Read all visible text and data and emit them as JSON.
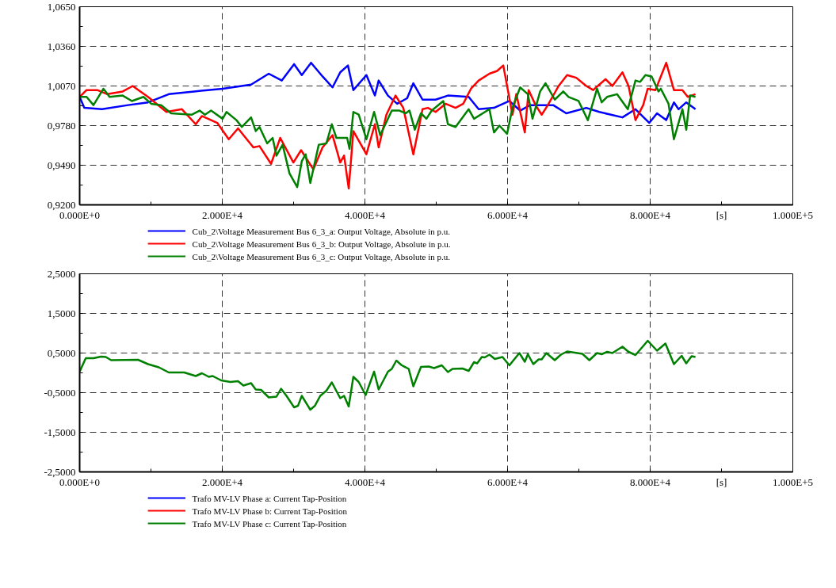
{
  "chart_data": [
    {
      "type": "line",
      "xlabel": "[s]",
      "xlim": [
        0,
        100000
      ],
      "ylim": [
        0.92,
        1.065
      ],
      "grid": true,
      "legend": "bottom",
      "line_style": "solid",
      "xticks": [
        {
          "value": 0,
          "label": "0.000E+0"
        },
        {
          "value": 20000,
          "label": "2.000E+4"
        },
        {
          "value": 40000,
          "label": "4.000E+4"
        },
        {
          "value": 60000,
          "label": "6.000E+4"
        },
        {
          "value": 80000,
          "label": "8.000E+4"
        },
        {
          "value": 100000,
          "label": "1.000E+5"
        }
      ],
      "yticks": [
        {
          "value": 0.92,
          "label": "0,9200"
        },
        {
          "value": 0.949,
          "label": "0,9490"
        },
        {
          "value": 0.978,
          "label": "0,9780"
        },
        {
          "value": 1.007,
          "label": "1,0070"
        },
        {
          "value": 1.036,
          "label": "1,0360"
        },
        {
          "value": 1.065,
          "label": "1,0650"
        }
      ],
      "series": [
        {
          "name": "Cub_2\\Voltage Measurement Bus 6_3_a: Output Voltage, Absolute in p.u.",
          "color": "#0000ff",
          "x": [
            0,
            650,
            3130,
            6790,
            9590,
            12500,
            16060,
            20050,
            24040,
            26520,
            28350,
            30070,
            31150,
            32450,
            34060,
            35460,
            36540,
            37620,
            38380,
            40210,
            41400,
            41930,
            43230,
            44520,
            45920,
            46790,
            48080,
            49910,
            51640,
            54550,
            55950,
            58100,
            60260,
            61770,
            63170,
            66400,
            68240,
            71040,
            72870,
            76110,
            77940,
            79880,
            80960,
            82250,
            83330,
            83980,
            85060,
            86350
          ],
          "values": [
            0.999,
            0.991,
            0.99,
            0.993,
            0.995,
            1.001,
            1.003,
            1.005,
            1.008,
            1.016,
            1.011,
            1.023,
            1.015,
            1.024,
            1.014,
            1.006,
            1.017,
            1.022,
            1.004,
            1.015,
            1.0,
            1.011,
            1.0,
            0.994,
            0.998,
            1.009,
            0.997,
            0.997,
            1.0,
            0.999,
            0.99,
            0.991,
            0.996,
            0.989,
            0.993,
            0.993,
            0.987,
            0.991,
            0.988,
            0.984,
            0.99,
            0.98,
            0.987,
            0.982,
            0.995,
            0.99,
            0.995,
            0.99
          ]
        },
        {
          "name": "Cub_2\\Voltage Measurement Bus 6_3_b: Output Voltage, Absolute in p.u.",
          "color": "#ff0000",
          "x": [
            0,
            970,
            2480,
            3880,
            6040,
            7440,
            8520,
            9590,
            12180,
            14340,
            16280,
            17140,
            19300,
            20910,
            22210,
            24360,
            25220,
            26840,
            28130,
            29970,
            31050,
            32770,
            34060,
            35460,
            36540,
            37080,
            37730,
            38380,
            40210,
            41400,
            41930,
            43010,
            44300,
            45380,
            46790,
            48080,
            48830,
            49910,
            51310,
            52710,
            53790,
            54870,
            55950,
            57460,
            58540,
            59400,
            60690,
            61230,
            62420,
            62960,
            63930,
            64790,
            65650,
            67160,
            68350,
            69640,
            71040,
            72010,
            72870,
            73740,
            74700,
            76110,
            76970,
            77940,
            79020,
            79660,
            80740,
            82250,
            83330,
            84520,
            85270,
            86350
          ],
          "values": [
            0.999,
            1.004,
            1.004,
            1.001,
            1.003,
            1.007,
            1.003,
            0.999,
            0.988,
            0.99,
            0.979,
            0.985,
            0.98,
            0.968,
            0.976,
            0.962,
            0.963,
            0.95,
            0.969,
            0.951,
            0.96,
            0.946,
            0.962,
            0.971,
            0.951,
            0.956,
            0.932,
            0.974,
            0.957,
            0.979,
            0.962,
            0.986,
            1.0,
            0.991,
            0.957,
            0.99,
            0.991,
            0.988,
            0.994,
            0.991,
            0.994,
            1.005,
            1.011,
            1.016,
            1.018,
            1.022,
            0.986,
            1.001,
            0.973,
            1.004,
            0.993,
            0.986,
            0.993,
            1.007,
            1.015,
            1.013,
            1.007,
            1.004,
            1.008,
            1.012,
            1.007,
            1.017,
            1.007,
            0.982,
            0.993,
            1.005,
            1.004,
            1.024,
            1.004,
            1.004,
            0.999,
            1.001
          ]
        },
        {
          "name": "Cub_2\\Voltage Measurement Bus 6_3_c: Output Voltage, Absolute in p.u.",
          "color": "#008000",
          "x": [
            0,
            970,
            1940,
            3340,
            4200,
            6040,
            7330,
            8950,
            10030,
            11430,
            12830,
            15740,
            16820,
            17570,
            18430,
            20050,
            20590,
            21990,
            22750,
            24040,
            24690,
            25220,
            26300,
            27060,
            27600,
            28460,
            29430,
            30510,
            31150,
            31690,
            32340,
            33530,
            34600,
            35360,
            36000,
            37510,
            37840,
            38380,
            39130,
            40210,
            41290,
            42150,
            43770,
            44840,
            45710,
            46250,
            47000,
            47860,
            48620,
            49370,
            50990,
            51640,
            52710,
            54550,
            55300,
            57460,
            58100,
            58860,
            59940,
            60690,
            61770,
            62850,
            63500,
            64570,
            65330,
            66620,
            67810,
            68560,
            69960,
            71260,
            72550,
            73200,
            73950,
            75350,
            76860,
            77940,
            78590,
            79340,
            80200,
            81170,
            81490,
            82570,
            83330,
            84520,
            85060,
            85600,
            86350
          ],
          "values": [
            0.999,
            0.999,
            0.993,
            1.005,
            0.999,
            1.0,
            0.996,
            0.999,
            0.994,
            0.993,
            0.987,
            0.986,
            0.989,
            0.986,
            0.989,
            0.983,
            0.988,
            0.982,
            0.977,
            0.984,
            0.974,
            0.977,
            0.965,
            0.969,
            0.956,
            0.964,
            0.943,
            0.933,
            0.952,
            0.957,
            0.936,
            0.964,
            0.965,
            0.979,
            0.969,
            0.969,
            0.961,
            0.988,
            0.986,
            0.968,
            0.988,
            0.971,
            0.989,
            0.989,
            0.987,
            0.989,
            0.975,
            0.987,
            0.983,
            0.989,
            0.996,
            0.979,
            0.977,
            0.99,
            0.983,
            0.99,
            0.973,
            0.978,
            0.972,
            0.991,
            1.006,
            1.001,
            0.983,
            1.003,
            1.009,
            0.997,
            1.003,
            0.999,
            0.996,
            0.982,
            1.005,
            0.995,
            0.999,
            1.001,
            0.99,
            1.011,
            1.01,
            1.015,
            1.014,
            1.003,
            1.005,
            0.994,
            0.968,
            0.99,
            0.975,
            1.0,
            0.999
          ]
        }
      ]
    },
    {
      "type": "line",
      "xlabel": "[s]",
      "xlim": [
        0,
        100000
      ],
      "ylim": [
        -2.5,
        2.5
      ],
      "grid": true,
      "legend": "bottom",
      "line_style": "solid",
      "xticks": [
        {
          "value": 0,
          "label": "0.000E+0"
        },
        {
          "value": 20000,
          "label": "2.000E+4"
        },
        {
          "value": 40000,
          "label": "4.000E+4"
        },
        {
          "value": 60000,
          "label": "6.000E+4"
        },
        {
          "value": 80000,
          "label": "8.000E+4"
        },
        {
          "value": 100000,
          "label": "1.000E+5"
        }
      ],
      "yticks": [
        {
          "value": -2.5,
          "label": "-2,5000"
        },
        {
          "value": -1.5,
          "label": "-1,5000"
        },
        {
          "value": -0.5,
          "label": "-0,5000"
        },
        {
          "value": 0.5,
          "label": "0,5000"
        },
        {
          "value": 1.5,
          "label": "1,5000"
        },
        {
          "value": 2.5,
          "label": "2,5000"
        }
      ],
      "x": [
        0,
        860,
        1940,
        3020,
        3670,
        4420,
        8190,
        9590,
        11100,
        12500,
        14660,
        16280,
        17140,
        18110,
        18650,
        19840,
        21130,
        22210,
        22960,
        24040,
        24690,
        25440,
        26520,
        27600,
        28240,
        29000,
        30070,
        30620,
        31150,
        32340,
        32990,
        33740,
        34600,
        35360,
        36540,
        37080,
        37730,
        38380,
        39130,
        40100,
        41290,
        41930,
        43230,
        43770,
        44410,
        45170,
        46140,
        46790,
        47860,
        48940,
        49700,
        50780,
        51640,
        52280,
        53680,
        54550,
        55300,
        55740,
        56390,
        56800,
        57460,
        58210,
        59290,
        60260,
        61660,
        62420,
        62850,
        63610,
        64360,
        64790,
        65440,
        66620,
        67480,
        68350,
        70500,
        71470,
        72550,
        73200,
        73950,
        74700,
        76110,
        76970,
        77940,
        79660,
        80960,
        82140,
        83330,
        84410,
        85060,
        85810,
        86350
      ],
      "series": [
        {
          "name": "Trafo MV-LV Phase a: Current Tap-Position",
          "color": "#0000ff",
          "values": [
            null,
            null,
            null,
            null,
            null,
            null,
            null,
            null,
            null,
            null,
            null,
            null,
            null,
            null,
            null,
            null,
            null,
            null,
            null,
            null,
            null,
            null,
            null,
            null,
            null,
            null,
            null,
            null,
            null,
            null,
            null,
            null,
            null,
            null,
            null,
            null,
            null,
            null,
            null,
            null,
            null,
            null,
            null,
            null,
            null,
            null,
            null,
            null,
            null,
            null,
            null,
            null,
            null,
            null,
            null,
            null,
            null,
            null,
            null,
            null,
            null,
            null,
            null,
            null,
            null,
            null,
            null,
            null,
            null,
            null,
            null,
            null,
            null,
            null,
            null,
            null,
            null,
            null,
            null,
            null,
            null,
            null,
            null,
            null,
            null,
            null,
            null,
            null,
            null,
            null,
            null
          ]
        },
        {
          "name": "Trafo MV-LV Phase b: Current Tap-Position",
          "color": "#ff0000",
          "values": [
            null,
            null,
            null,
            null,
            null,
            null,
            null,
            null,
            null,
            null,
            null,
            null,
            null,
            null,
            null,
            null,
            null,
            null,
            null,
            null,
            null,
            null,
            null,
            null,
            null,
            null,
            null,
            null,
            null,
            null,
            null,
            null,
            null,
            null,
            null,
            null,
            null,
            null,
            null,
            null,
            null,
            null,
            null,
            null,
            null,
            null,
            null,
            null,
            null,
            null,
            null,
            null,
            null,
            null,
            null,
            null,
            null,
            null,
            null,
            null,
            null,
            null,
            null,
            null,
            null,
            null,
            null,
            null,
            null,
            null,
            null,
            null,
            null,
            null,
            null,
            null,
            null,
            null,
            null,
            null,
            null,
            null,
            null,
            null,
            null,
            null,
            null,
            null,
            null,
            null,
            null
          ]
        },
        {
          "name": "Trafo MV-LV Phase c: Current Tap-Position",
          "color": "#008000",
          "values": [
            0.03,
            0.37,
            0.37,
            0.41,
            0.4,
            0.32,
            0.33,
            0.22,
            0.14,
            0.01,
            0.01,
            -0.08,
            -0.01,
            -0.1,
            -0.08,
            -0.19,
            -0.23,
            -0.21,
            -0.32,
            -0.26,
            -0.42,
            -0.43,
            -0.62,
            -0.6,
            -0.4,
            -0.58,
            -0.87,
            -0.83,
            -0.58,
            -0.93,
            -0.83,
            -0.58,
            -0.45,
            -0.24,
            -0.64,
            -0.58,
            -0.85,
            -0.1,
            -0.23,
            -0.56,
            0.03,
            -0.42,
            0.03,
            0.1,
            0.31,
            0.19,
            0.1,
            -0.34,
            0.15,
            0.16,
            0.12,
            0.19,
            0.02,
            0.1,
            0.11,
            0.05,
            0.27,
            0.24,
            0.4,
            0.39,
            0.46,
            0.35,
            0.4,
            0.19,
            0.5,
            0.28,
            0.47,
            0.22,
            0.34,
            0.34,
            0.5,
            0.32,
            0.46,
            0.54,
            0.48,
            0.32,
            0.5,
            0.47,
            0.53,
            0.5,
            0.66,
            0.53,
            0.45,
            0.81,
            0.56,
            0.74,
            0.22,
            0.43,
            0.24,
            0.42,
            0.4
          ]
        }
      ]
    }
  ]
}
